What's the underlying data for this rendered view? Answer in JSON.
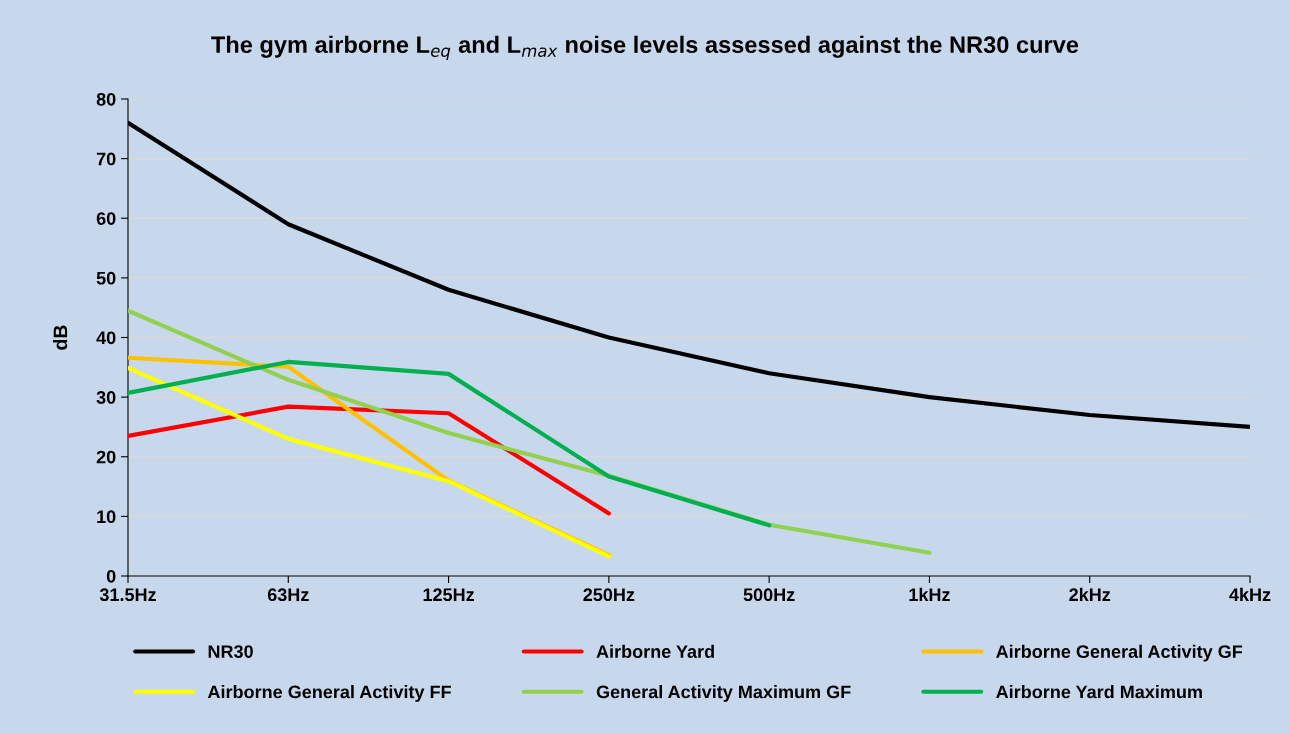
{
  "chart_data": {
    "type": "line",
    "title": "The gym airborne L$_{eq}$ and L$_{max}$ noise levels assessed against the NR30 curve",
    "ylabel": "dB",
    "categories": [
      "31.5Hz",
      "63Hz",
      "125Hz",
      "250Hz",
      "500Hz",
      "1kHz",
      "2kHz",
      "4kHz"
    ],
    "series": [
      {
        "name": "NR30",
        "color": "#000000",
        "values": [
          76,
          59,
          48,
          40,
          34,
          30,
          27,
          25
        ]
      },
      {
        "name": "Airborne Yard",
        "color": "#ff0000",
        "values": [
          23.5,
          28.4,
          27.3,
          10.5,
          null,
          null,
          null,
          null
        ]
      },
      {
        "name": "Airborne General Activity GF",
        "color": "#ffc000",
        "values": [
          36.6,
          35.1,
          16,
          3.5,
          null,
          null,
          null,
          null
        ]
      },
      {
        "name": "Airborne General Activity FF",
        "color": "#ffff00",
        "values": [
          34.9,
          23,
          15.9,
          3.3,
          null,
          null,
          null,
          null
        ]
      },
      {
        "name": "General Activity Maximum GF",
        "color": "#92d050",
        "values": [
          44.5,
          32.9,
          24,
          16.8,
          8.6,
          3.9,
          null,
          null
        ]
      },
      {
        "name": "Airborne Yard Maximum",
        "color": "#00b050",
        "values": [
          30.7,
          35.9,
          33.9,
          16.7,
          8.5,
          null,
          null,
          null
        ]
      }
    ],
    "ylim": [
      0,
      80
    ],
    "yticks": [
      0,
      10,
      20,
      30,
      40,
      50,
      60,
      70,
      80
    ],
    "grid": "y",
    "legend": "bottom",
    "marker": "none",
    "line_style": "solid"
  }
}
